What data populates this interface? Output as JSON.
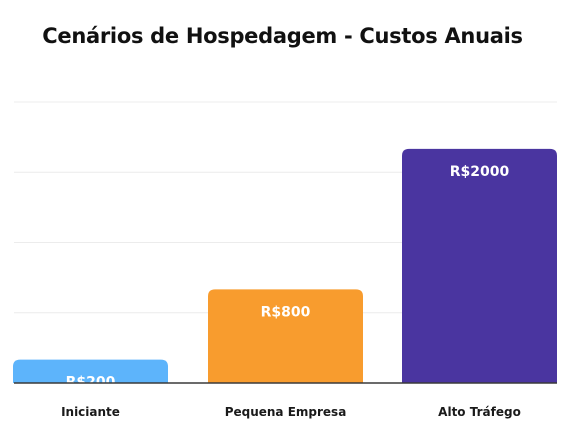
{
  "chart_data": {
    "type": "bar",
    "title": "Cenários de Hospedagem - Custos Anuais",
    "categories": [
      "Iniciante",
      "Pequena Empresa",
      "Alto Tráfego"
    ],
    "values": [
      200,
      800,
      2000
    ],
    "data_labels": [
      "R$200",
      "R$800",
      "R$2000"
    ],
    "colors": [
      "#5db4fb",
      "#f89c2e",
      "#4a35a0"
    ],
    "xlabel": "",
    "ylabel": "",
    "ylim": [
      0,
      2400
    ],
    "grid": true,
    "legend": "none"
  }
}
